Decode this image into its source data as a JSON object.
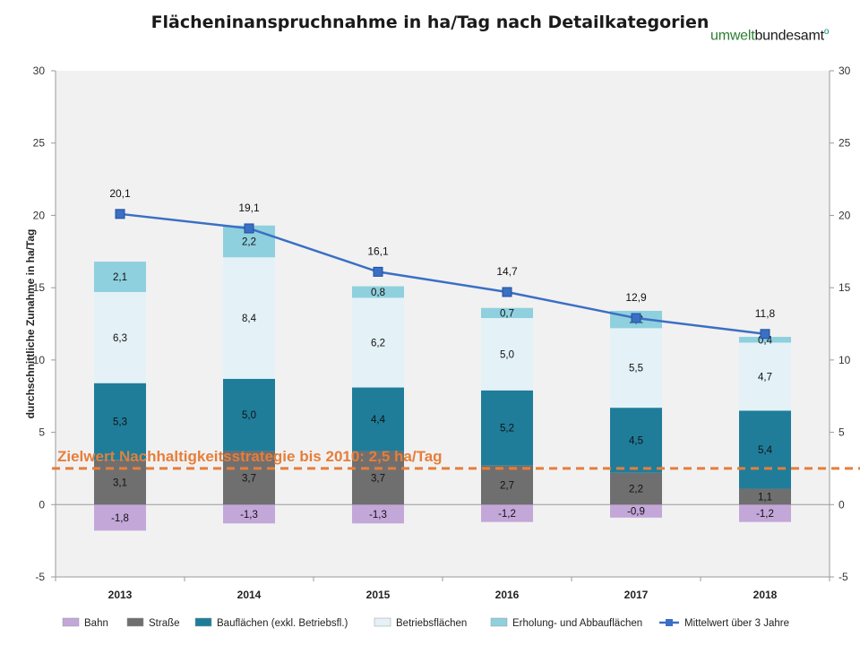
{
  "header": {
    "title": "Flächeninanspruchnahme  in ha/Tag  nach Detailkategorien",
    "logo_text_a": "umwelt",
    "logo_text_b": "bundesamt",
    "logo_mark": "o"
  },
  "chart_data": {
    "type": "bar",
    "stacked": true,
    "categories": [
      "2013",
      "2014",
      "2015",
      "2016",
      "2017",
      "2018"
    ],
    "ylabel": "durchschnittliche  Zunahme  in  ha/Tag",
    "ylim": [
      -5,
      30
    ],
    "yticks": [
      "-5",
      "0",
      "5",
      "10",
      "15",
      "20",
      "25",
      "30"
    ],
    "grid": false,
    "legend_position": "bottom",
    "series": [
      {
        "name": "Bahn",
        "color": "#c3a7d9",
        "values": [
          -1.8,
          -1.3,
          -1.3,
          -1.2,
          -0.9,
          -1.2
        ],
        "labels": [
          "-1,8",
          "-1,3",
          "-1,3",
          "-1,2",
          "-0,9",
          "-1,2"
        ]
      },
      {
        "name": "Straße",
        "color": "#6f6f6f",
        "values": [
          3.1,
          3.7,
          3.7,
          2.7,
          2.2,
          1.1
        ],
        "labels": [
          "3,1",
          "3,7",
          "3,7",
          "2,7",
          "2,2",
          "1,1"
        ]
      },
      {
        "name": "Bauflächen (exkl. Betriebsfl.)",
        "color": "#1f7d9a",
        "values": [
          5.3,
          5.0,
          4.4,
          5.2,
          4.5,
          5.4
        ],
        "labels": [
          "5,3",
          "5,0",
          "4,4",
          "5,2",
          "4,5",
          "5,4"
        ]
      },
      {
        "name": "Betriebsflächen",
        "color": "#e4f2f8",
        "values": [
          6.3,
          8.4,
          6.2,
          5.0,
          5.5,
          4.7
        ],
        "labels": [
          "6,3",
          "8,4",
          "6,2",
          "5,0",
          "5,5",
          "4,7"
        ]
      },
      {
        "name": "Erholung- und Abbauflächen",
        "color": "#8fd0de",
        "values": [
          2.1,
          2.2,
          0.8,
          0.7,
          1.2,
          0.4
        ],
        "labels": [
          "2,1",
          "2,2",
          "0,8",
          "0,7",
          "1,2",
          "0,4"
        ]
      }
    ],
    "line_series": {
      "name": "Mittelwert über 3 Jahre",
      "color": "#3b6fc4",
      "values": [
        20.1,
        19.1,
        16.1,
        14.7,
        12.9,
        11.8
      ],
      "labels": [
        "20,1",
        "19,1",
        "16,1",
        "14,7",
        "12,9",
        "11,8"
      ]
    },
    "target_line": {
      "value": 2.5,
      "label": "Zielwert Nachhaltigkeitsstrategie bis 2010: 2,5 ha/Tag",
      "color": "#e67e3a"
    }
  }
}
